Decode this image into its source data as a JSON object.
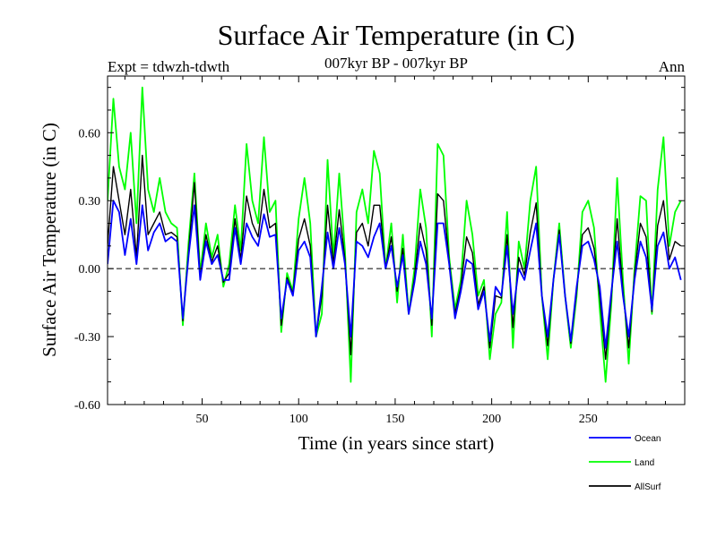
{
  "colors": {
    "ocean": "#0000ff",
    "land": "#00ff00",
    "allsurf": "#000000",
    "axis": "#000000"
  },
  "chart_data": {
    "type": "line",
    "title": "Surface Air Temperature (in C)",
    "subtitle": "007kyr BP - 007kyr BP",
    "expt_label": "Expt = tdwzh-tdwth",
    "period_label": "Ann",
    "xlabel": "Time (in years since start)",
    "ylabel": "Surface Air Temperature (in C)",
    "xlim": [
      1,
      300
    ],
    "ylim": [
      -0.6,
      0.85
    ],
    "x_ticks": [
      50,
      100,
      150,
      200,
      250
    ],
    "x_tick_labels": [
      "50",
      "100",
      "150",
      "200",
      "250"
    ],
    "y_ticks": [
      -0.6,
      -0.3,
      0.0,
      0.3,
      0.6
    ],
    "y_tick_labels": [
      "-0.60",
      "-0.30",
      "0.00",
      "0.30",
      "0.60"
    ],
    "reference_line": 0.0,
    "legend_position": "bottom-right",
    "x_start": 1,
    "x_step": 3,
    "series": [
      {
        "name": "Ocean",
        "color": "#0000ff",
        "values": [
          0.02,
          0.3,
          0.25,
          0.06,
          0.22,
          0.02,
          0.28,
          0.08,
          0.16,
          0.2,
          0.12,
          0.14,
          0.12,
          -0.22,
          0.06,
          0.28,
          -0.05,
          0.12,
          0.02,
          0.06,
          -0.05,
          -0.05,
          0.18,
          0.02,
          0.2,
          0.14,
          0.1,
          0.24,
          0.14,
          0.15,
          -0.22,
          -0.05,
          -0.12,
          0.08,
          0.12,
          0.05,
          -0.3,
          -0.08,
          0.16,
          0.0,
          0.18,
          0.02,
          -0.3,
          0.12,
          0.1,
          0.05,
          0.14,
          0.2,
          0.0,
          0.1,
          -0.08,
          0.06,
          -0.2,
          -0.06,
          0.12,
          0.02,
          -0.22,
          0.2,
          0.2,
          0.02,
          -0.22,
          -0.1,
          0.04,
          0.02,
          -0.18,
          -0.1,
          -0.32,
          -0.08,
          -0.12,
          0.1,
          -0.2,
          0.0,
          -0.05,
          0.08,
          0.2,
          -0.12,
          -0.3,
          -0.05,
          0.15,
          -0.12,
          -0.32,
          -0.08,
          0.1,
          0.12,
          0.04,
          -0.08,
          -0.35,
          -0.1,
          0.12,
          -0.12,
          -0.3,
          -0.05,
          0.12,
          0.05,
          -0.18,
          0.1,
          0.16,
          0.0,
          0.05,
          -0.05
        ]
      },
      {
        "name": "Land",
        "color": "#00ff00",
        "values": [
          0.3,
          0.75,
          0.45,
          0.35,
          0.6,
          0.2,
          0.8,
          0.35,
          0.25,
          0.4,
          0.25,
          0.2,
          0.18,
          -0.25,
          0.12,
          0.42,
          -0.02,
          0.2,
          0.05,
          0.15,
          -0.08,
          0.02,
          0.28,
          0.08,
          0.55,
          0.3,
          0.2,
          0.58,
          0.25,
          0.3,
          -0.28,
          -0.02,
          -0.1,
          0.22,
          0.4,
          0.2,
          -0.3,
          -0.2,
          0.48,
          0.05,
          0.42,
          0.08,
          -0.5,
          0.25,
          0.35,
          0.2,
          0.52,
          0.42,
          0.0,
          0.2,
          -0.15,
          0.15,
          -0.2,
          0.0,
          0.35,
          0.18,
          -0.3,
          0.55,
          0.5,
          0.05,
          -0.18,
          -0.05,
          0.3,
          0.15,
          -0.12,
          -0.05,
          -0.4,
          -0.2,
          -0.15,
          0.25,
          -0.35,
          0.12,
          0.0,
          0.3,
          0.45,
          -0.12,
          -0.4,
          -0.05,
          0.2,
          -0.12,
          -0.35,
          -0.12,
          0.25,
          0.3,
          0.18,
          -0.18,
          -0.5,
          -0.15,
          0.4,
          -0.05,
          -0.42,
          0.0,
          0.32,
          0.3,
          -0.2,
          0.35,
          0.58,
          0.1,
          0.25,
          0.3
        ]
      },
      {
        "name": "AllSurf",
        "color": "#000000",
        "values": [
          0.1,
          0.45,
          0.3,
          0.15,
          0.35,
          0.05,
          0.5,
          0.15,
          0.2,
          0.25,
          0.15,
          0.16,
          0.14,
          -0.23,
          0.08,
          0.38,
          -0.04,
          0.15,
          0.03,
          0.1,
          -0.06,
          -0.02,
          0.22,
          0.04,
          0.32,
          0.2,
          0.14,
          0.35,
          0.18,
          0.2,
          -0.25,
          -0.04,
          -0.11,
          0.13,
          0.22,
          0.1,
          -0.3,
          -0.12,
          0.28,
          0.02,
          0.26,
          0.04,
          -0.38,
          0.16,
          0.2,
          0.1,
          0.28,
          0.28,
          0.0,
          0.14,
          -0.1,
          0.09,
          -0.2,
          -0.04,
          0.2,
          0.08,
          -0.25,
          0.33,
          0.3,
          0.03,
          -0.2,
          -0.08,
          0.14,
          0.07,
          -0.16,
          -0.08,
          -0.35,
          -0.12,
          -0.13,
          0.15,
          -0.26,
          0.05,
          -0.03,
          0.16,
          0.29,
          -0.12,
          -0.34,
          -0.05,
          0.17,
          -0.12,
          -0.33,
          -0.1,
          0.15,
          0.18,
          0.09,
          -0.12,
          -0.4,
          -0.12,
          0.22,
          -0.1,
          -0.35,
          -0.03,
          0.2,
          0.14,
          -0.19,
          0.19,
          0.3,
          0.04,
          0.12,
          0.1
        ]
      }
    ]
  }
}
